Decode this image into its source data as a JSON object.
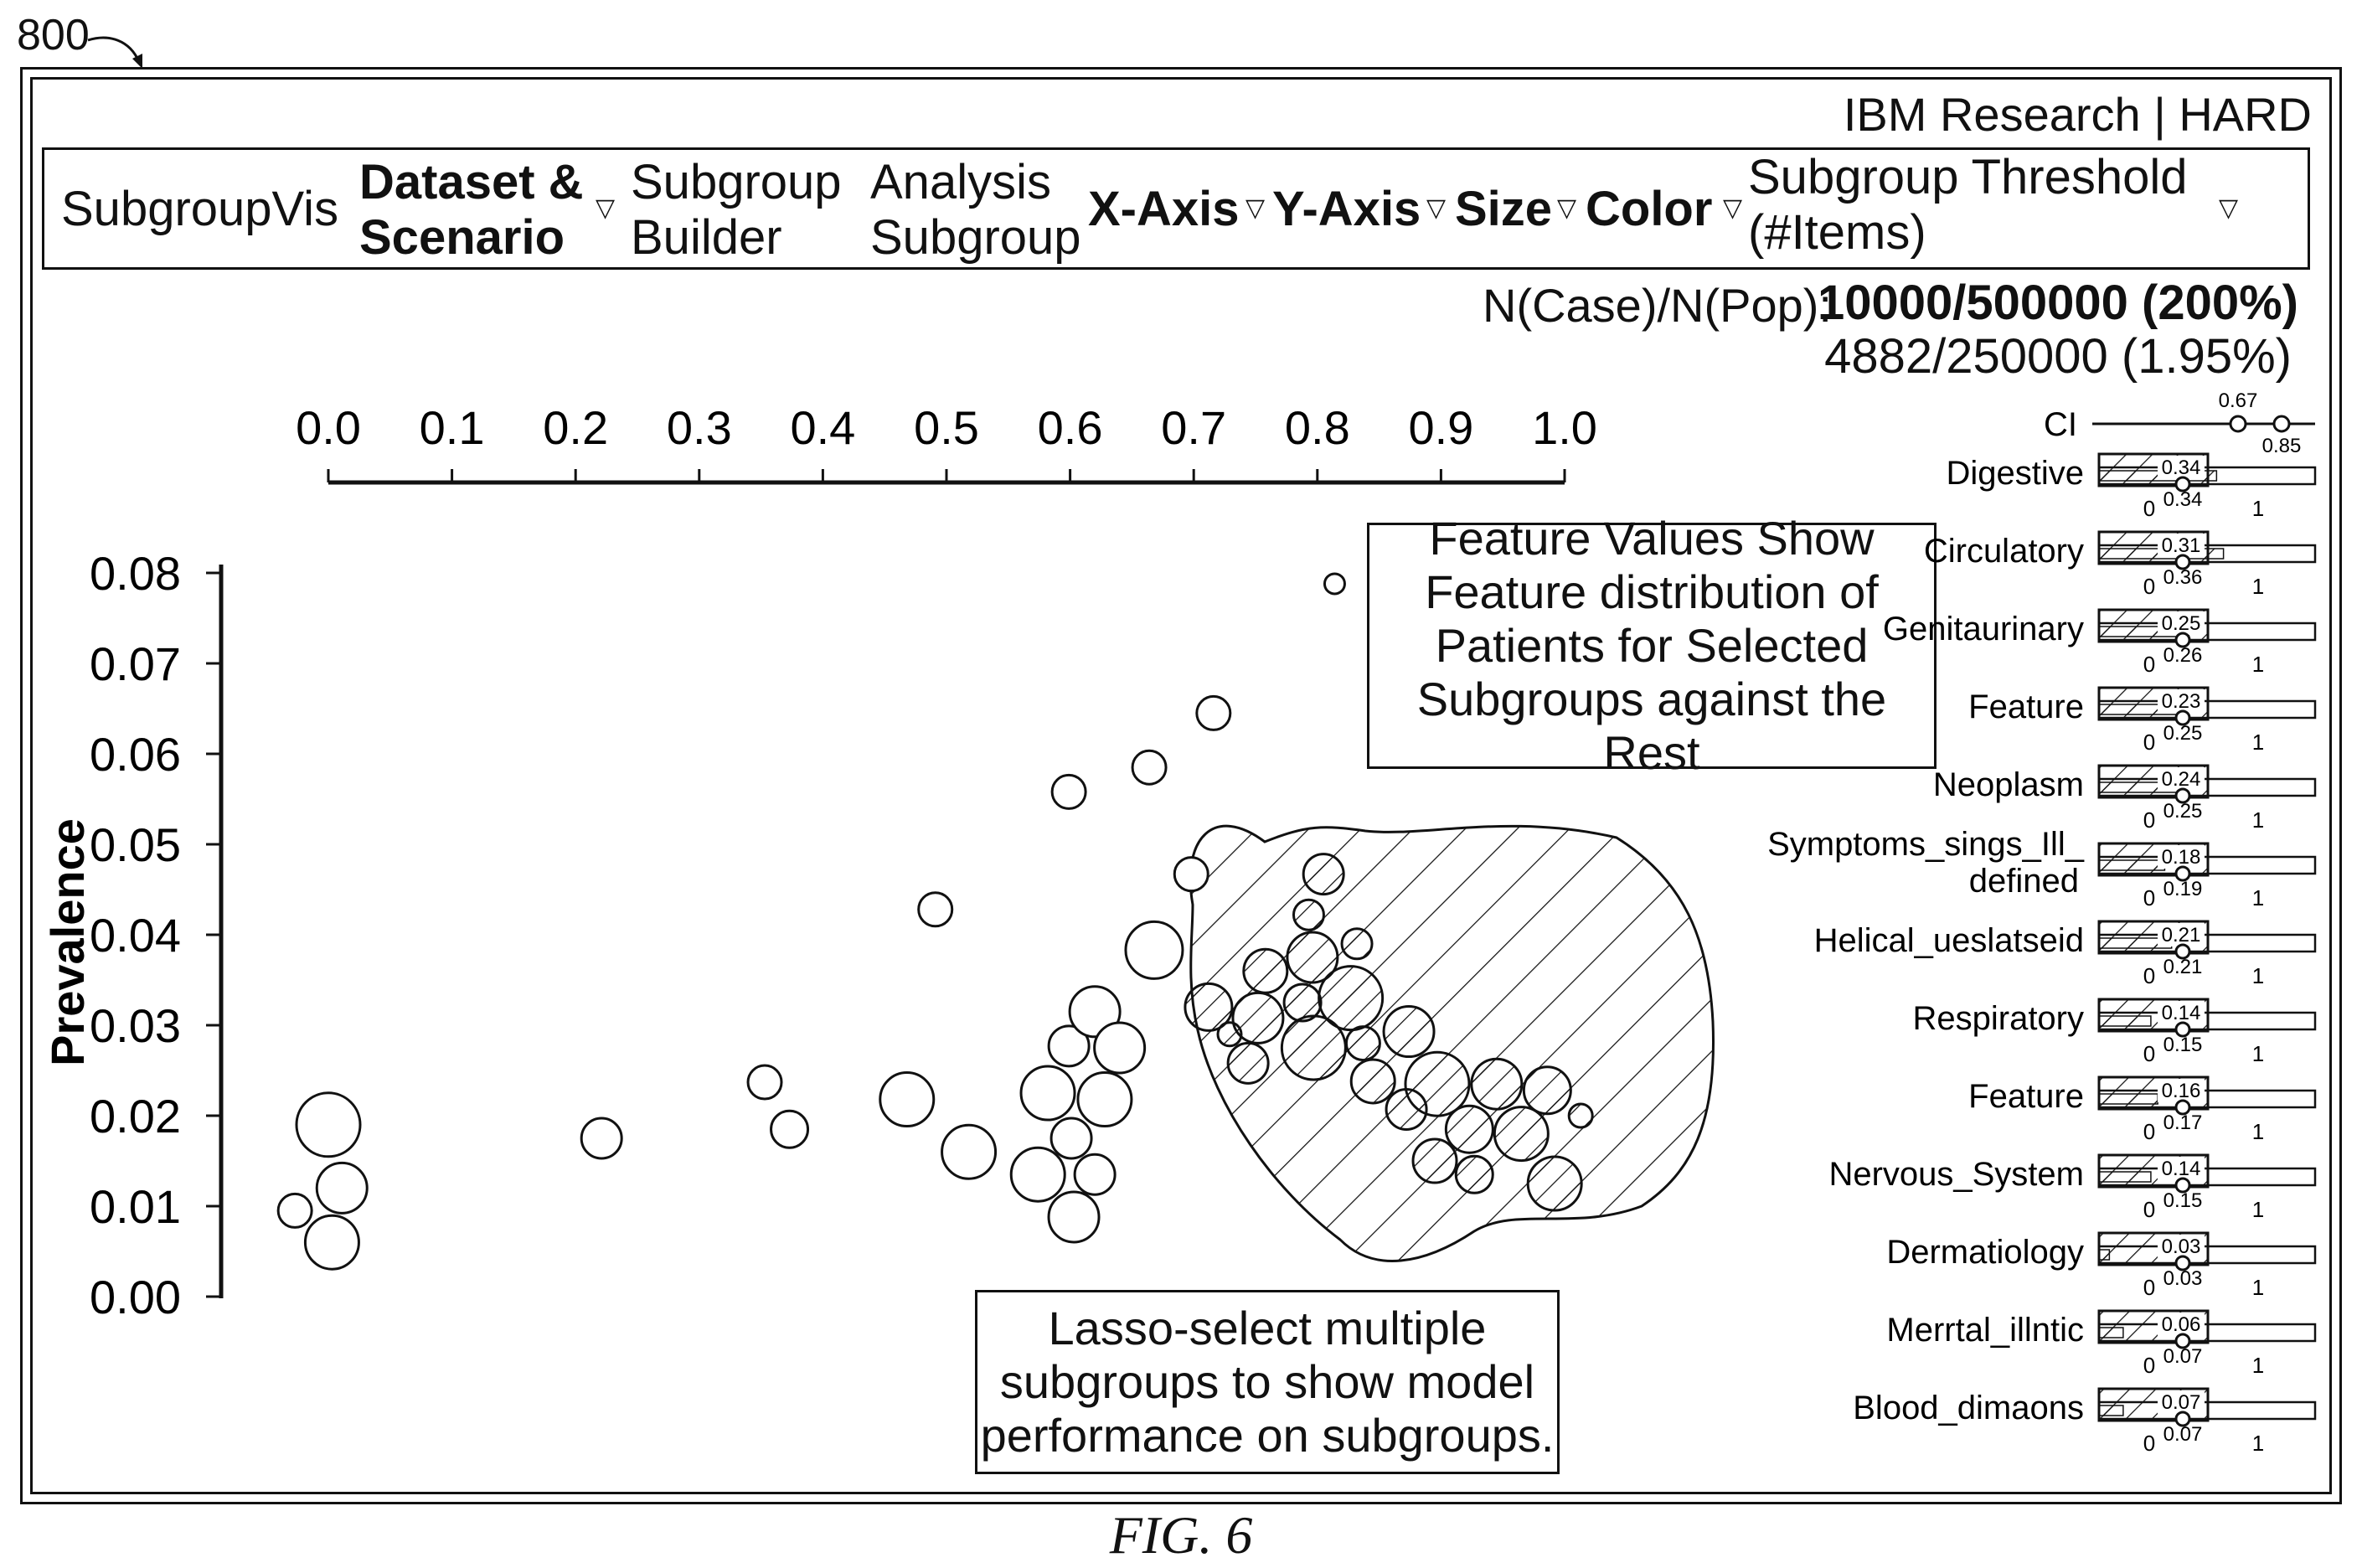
{
  "figure_ref": "800",
  "brand": "IBM Research | HARD",
  "menu": {
    "app_name": "SubgroupVis",
    "dataset_line1": "Dataset &",
    "dataset_line2": "Scenario",
    "builder_line1": "Subgroup",
    "builder_line2": "Builder",
    "analysis_line1": "Analysis",
    "analysis_line2": "Subgroup",
    "x_axis": "X-Axis",
    "y_axis": "Y-Axis",
    "size": "Size",
    "color": "Color",
    "threshold_line1": "Subgroup Threshold",
    "threshold_line2": "(#Items)"
  },
  "stats": {
    "label": "N(Case)/N(Pop):",
    "selected": "10000/500000 (200%)",
    "rest": "4882/250000 (1.95%)"
  },
  "annotations": {
    "feature_note": [
      "Feature Values Show",
      "Feature distribution of",
      "Patients for Selected",
      "Subgroups against the Rest"
    ],
    "lasso_note": [
      "Lasso-select multiple",
      "subgroups to show model",
      "performance on subgroups."
    ]
  },
  "ci": {
    "label": "CI",
    "low": "0.67",
    "high": "0.85"
  },
  "feature_bars": [
    {
      "name": "Digestive",
      "sel": "0.34",
      "rest": "0.34"
    },
    {
      "name": "Circulatory",
      "sel": "0.31",
      "rest": "0.36"
    },
    {
      "name": "Genitaurinary",
      "sel": "0.25",
      "rest": "0.26"
    },
    {
      "name": "Feature",
      "sel": "0.23",
      "rest": "0.25"
    },
    {
      "name": "Neoplasm",
      "sel": "0.24",
      "rest": "0.25"
    },
    {
      "name": "Symptoms_sings_Ill_ defined",
      "sel": "0.18",
      "rest": "0.19"
    },
    {
      "name": "Helical_ueslatseid",
      "sel": "0.21",
      "rest": "0.21"
    },
    {
      "name": "Respiratory",
      "sel": "0.14",
      "rest": "0.15"
    },
    {
      "name": "Feature",
      "sel": "0.16",
      "rest": "0.17"
    },
    {
      "name": "Nervous_System",
      "sel": "0.14",
      "rest": "0.15"
    },
    {
      "name": "Dermatiology",
      "sel": "0.03",
      "rest": "0.03"
    },
    {
      "name": "Merrtal_illntic",
      "sel": "0.06",
      "rest": "0.07"
    },
    {
      "name": "Blood_dimaons",
      "sel": "0.07",
      "rest": "0.07"
    }
  ],
  "bar_scale": {
    "min": "0",
    "max": "1"
  },
  "caption": "FIG. 6",
  "chart_data": {
    "type": "scatter",
    "ylabel": "Prevalence",
    "xlim": [
      0.0,
      1.0
    ],
    "ylim": [
      0.0,
      0.08
    ],
    "x_ticks": [
      "0.0",
      "0.1",
      "0.2",
      "0.3",
      "0.4",
      "0.5",
      "0.6",
      "0.7",
      "0.8",
      "0.9",
      "1.0"
    ],
    "y_ticks": [
      "0.00",
      "0.01",
      "0.02",
      "0.03",
      "0.04",
      "0.05",
      "0.06",
      "0.07",
      "0.08"
    ],
    "points": [
      {
        "x": 0.0,
        "y": 0.019,
        "r": 38,
        "sel": false
      },
      {
        "x": 0.011,
        "y": 0.012,
        "r": 30,
        "sel": false
      },
      {
        "x": -0.027,
        "y": 0.0095,
        "r": 20,
        "sel": false
      },
      {
        "x": 0.003,
        "y": 0.006,
        "r": 32,
        "sel": false
      },
      {
        "x": 0.221,
        "y": 0.0175,
        "r": 24,
        "sel": false
      },
      {
        "x": 0.353,
        "y": 0.0237,
        "r": 20,
        "sel": false
      },
      {
        "x": 0.373,
        "y": 0.0185,
        "r": 22,
        "sel": false
      },
      {
        "x": 0.468,
        "y": 0.0218,
        "r": 32,
        "sel": false
      },
      {
        "x": 0.491,
        "y": 0.0428,
        "r": 20,
        "sel": false
      },
      {
        "x": 0.518,
        "y": 0.016,
        "r": 32,
        "sel": false
      },
      {
        "x": 0.574,
        "y": 0.0135,
        "r": 32,
        "sel": false
      },
      {
        "x": 0.582,
        "y": 0.0225,
        "r": 32,
        "sel": false
      },
      {
        "x": 0.599,
        "y": 0.0558,
        "r": 20,
        "sel": false
      },
      {
        "x": 0.599,
        "y": 0.0277,
        "r": 24,
        "sel": false
      },
      {
        "x": 0.601,
        "y": 0.0175,
        "r": 24,
        "sel": false
      },
      {
        "x": 0.603,
        "y": 0.0088,
        "r": 30,
        "sel": false
      },
      {
        "x": 0.62,
        "y": 0.0135,
        "r": 24,
        "sel": false
      },
      {
        "x": 0.62,
        "y": 0.0315,
        "r": 30,
        "sel": false
      },
      {
        "x": 0.628,
        "y": 0.0218,
        "r": 32,
        "sel": false
      },
      {
        "x": 0.64,
        "y": 0.0275,
        "r": 30,
        "sel": false
      },
      {
        "x": 0.664,
        "y": 0.0585,
        "r": 20,
        "sel": false
      },
      {
        "x": 0.668,
        "y": 0.0383,
        "r": 34,
        "sel": false
      },
      {
        "x": 0.698,
        "y": 0.0467,
        "r": 20,
        "sel": false
      },
      {
        "x": 0.716,
        "y": 0.0645,
        "r": 20,
        "sel": false
      },
      {
        "x": 0.814,
        "y": 0.0788,
        "r": 12,
        "sel": false
      },
      {
        "x": 0.805,
        "y": 0.0467,
        "r": 24,
        "sel": true
      },
      {
        "x": 0.793,
        "y": 0.0422,
        "r": 18,
        "sel": true
      },
      {
        "x": 0.832,
        "y": 0.039,
        "r": 18,
        "sel": true
      },
      {
        "x": 0.796,
        "y": 0.0375,
        "r": 30,
        "sel": true
      },
      {
        "x": 0.758,
        "y": 0.036,
        "r": 26,
        "sel": true
      },
      {
        "x": 0.827,
        "y": 0.033,
        "r": 38,
        "sel": true
      },
      {
        "x": 0.788,
        "y": 0.0325,
        "r": 22,
        "sel": true
      },
      {
        "x": 0.712,
        "y": 0.032,
        "r": 28,
        "sel": true
      },
      {
        "x": 0.752,
        "y": 0.0308,
        "r": 30,
        "sel": true
      },
      {
        "x": 0.729,
        "y": 0.029,
        "r": 14,
        "sel": true
      },
      {
        "x": 0.874,
        "y": 0.0293,
        "r": 30,
        "sel": true
      },
      {
        "x": 0.797,
        "y": 0.0275,
        "r": 38,
        "sel": true
      },
      {
        "x": 0.837,
        "y": 0.028,
        "r": 20,
        "sel": true
      },
      {
        "x": 0.744,
        "y": 0.0258,
        "r": 24,
        "sel": true
      },
      {
        "x": 0.845,
        "y": 0.0238,
        "r": 26,
        "sel": true
      },
      {
        "x": 0.897,
        "y": 0.0235,
        "r": 38,
        "sel": true
      },
      {
        "x": 0.945,
        "y": 0.0235,
        "r": 30,
        "sel": true
      },
      {
        "x": 0.986,
        "y": 0.0228,
        "r": 28,
        "sel": true
      },
      {
        "x": 0.872,
        "y": 0.0207,
        "r": 24,
        "sel": true
      },
      {
        "x": 0.923,
        "y": 0.0185,
        "r": 28,
        "sel": true
      },
      {
        "x": 0.965,
        "y": 0.018,
        "r": 32,
        "sel": true
      },
      {
        "x": 1.013,
        "y": 0.02,
        "r": 14,
        "sel": true
      },
      {
        "x": 0.895,
        "y": 0.015,
        "r": 26,
        "sel": true
      },
      {
        "x": 0.927,
        "y": 0.0135,
        "r": 22,
        "sel": true
      },
      {
        "x": 0.992,
        "y": 0.0125,
        "r": 32,
        "sel": true
      }
    ]
  }
}
